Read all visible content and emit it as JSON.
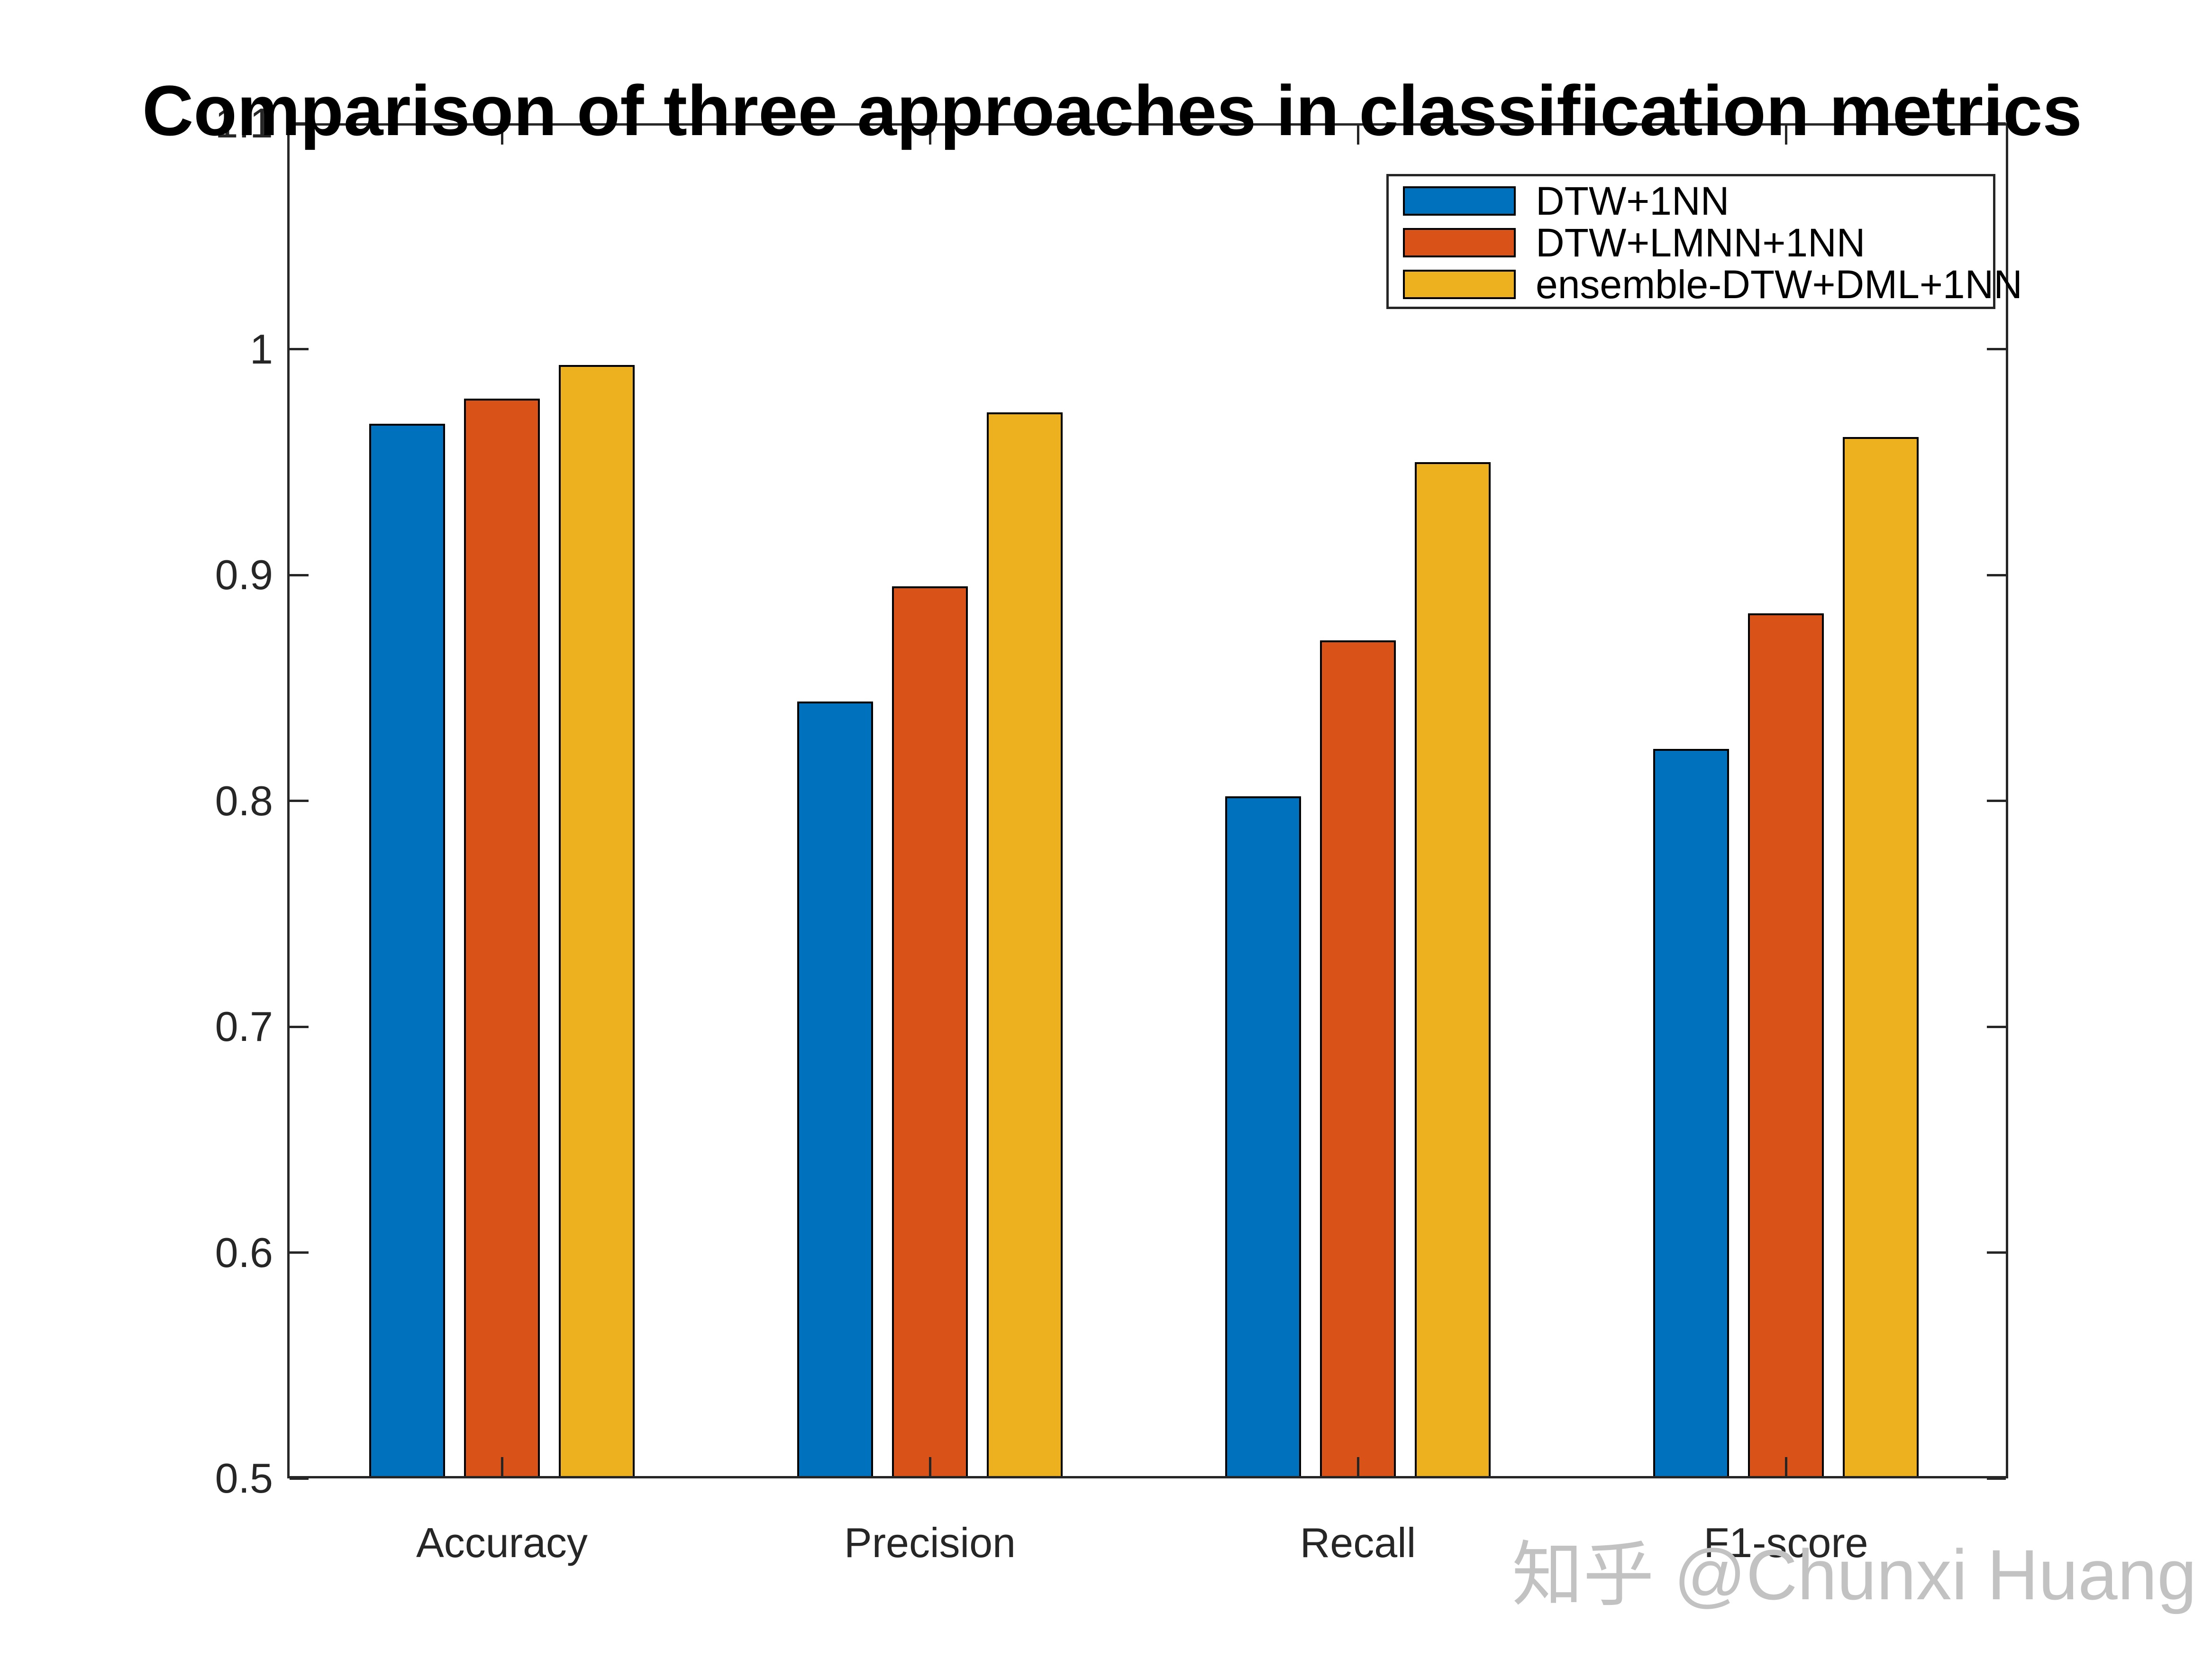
{
  "page": {
    "background": "#ffffff"
  },
  "watermark": {
    "text": "知乎 @Chunxi Huang",
    "color": "#c2c2c2"
  },
  "chart_data": {
    "type": "bar",
    "title": "Comparison of three approaches in classification metrics",
    "categories": [
      "Accuracy",
      "Precision",
      "Recall",
      "F1-score"
    ],
    "series": [
      {
        "name": "DTW+1NN",
        "color": "#0072BD",
        "values": [
          0.967,
          0.844,
          0.802,
          0.823
        ]
      },
      {
        "name": "DTW+LMNN+1NN",
        "color": "#D95319",
        "values": [
          0.978,
          0.895,
          0.871,
          0.883
        ]
      },
      {
        "name": "ensemble-DTW+DML+1NN",
        "color": "#EDB120",
        "values": [
          0.993,
          0.972,
          0.95,
          0.961
        ]
      }
    ],
    "xlabel": "",
    "ylabel": "",
    "ylim": [
      0.5,
      1.1
    ],
    "yticks": [
      0.5,
      0.6,
      0.7,
      0.8,
      0.9,
      1,
      1.1
    ],
    "ytick_labels": [
      "0.5",
      "0.6",
      "0.7",
      "0.8",
      "0.9",
      "1",
      "1.1"
    ],
    "grid": false,
    "legend_position": "top-right",
    "bar_edge_color": "#000000",
    "axis_color": "#262626",
    "title_color": "#000000"
  }
}
